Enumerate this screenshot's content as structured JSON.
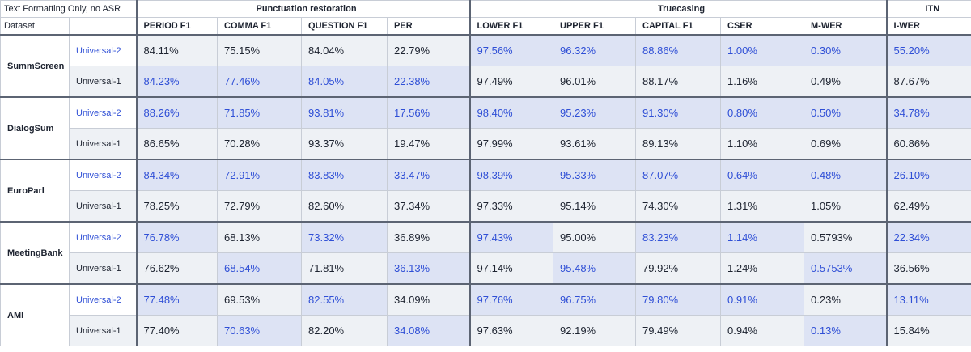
{
  "header": {
    "title": "Text Formatting Only, no ASR",
    "groups": [
      "Punctuation restoration",
      "Truecasing",
      "ITN"
    ],
    "dataset_label": "Dataset",
    "columns": [
      "PERIOD F1",
      "COMMA F1",
      "QUESTION F1",
      "PER",
      "LOWER F1",
      "UPPER F1",
      "CAPITAL F1",
      "CSER",
      "M-WER",
      "I-WER"
    ]
  },
  "datasets": [
    {
      "name": "SummScreen",
      "rows": [
        {
          "model": "Universal-2",
          "cells": [
            "84.11%",
            "75.15%",
            "84.04%",
            "22.79%",
            "97.56%",
            "96.32%",
            "88.86%",
            "1.00%",
            "0.30%",
            "55.20%"
          ],
          "highlight": [
            false,
            false,
            false,
            false,
            true,
            true,
            true,
            true,
            true,
            true
          ]
        },
        {
          "model": "Universal-1",
          "cells": [
            "84.23%",
            "77.46%",
            "84.05%",
            "22.38%",
            "97.49%",
            "96.01%",
            "88.17%",
            "1.16%",
            "0.49%",
            "87.67%"
          ],
          "highlight": [
            true,
            true,
            true,
            true,
            false,
            false,
            false,
            false,
            false,
            false
          ]
        }
      ]
    },
    {
      "name": "DialogSum",
      "rows": [
        {
          "model": "Universal-2",
          "cells": [
            "88.26%",
            "71.85%",
            "93.81%",
            "17.56%",
            "98.40%",
            "95.23%",
            "91.30%",
            "0.80%",
            "0.50%",
            "34.78%"
          ],
          "highlight": [
            true,
            true,
            true,
            true,
            true,
            true,
            true,
            true,
            true,
            true
          ]
        },
        {
          "model": "Universal-1",
          "cells": [
            "86.65%",
            "70.28%",
            "93.37%",
            "19.47%",
            "97.99%",
            "93.61%",
            "89.13%",
            "1.10%",
            "0.69%",
            "60.86%"
          ],
          "highlight": [
            false,
            false,
            false,
            false,
            false,
            false,
            false,
            false,
            false,
            false
          ]
        }
      ]
    },
    {
      "name": "EuroParl",
      "rows": [
        {
          "model": "Universal-2",
          "cells": [
            "84.34%",
            "72.91%",
            "83.83%",
            "33.47%",
            "98.39%",
            "95.33%",
            "87.07%",
            "0.64%",
            "0.48%",
            "26.10%"
          ],
          "highlight": [
            true,
            true,
            true,
            true,
            true,
            true,
            true,
            true,
            true,
            true
          ]
        },
        {
          "model": "Universal-1",
          "cells": [
            "78.25%",
            "72.79%",
            "82.60%",
            "37.34%",
            "97.33%",
            "95.14%",
            "74.30%",
            "1.31%",
            "1.05%",
            "62.49%"
          ],
          "highlight": [
            false,
            false,
            false,
            false,
            false,
            false,
            false,
            false,
            false,
            false
          ]
        }
      ]
    },
    {
      "name": "MeetingBank",
      "rows": [
        {
          "model": "Universal-2",
          "cells": [
            "76.78%",
            "68.13%",
            "73.32%",
            "36.89%",
            "97.43%",
            "95.00%",
            "83.23%",
            "1.14%",
            "0.5793%",
            "22.34%"
          ],
          "highlight": [
            true,
            false,
            true,
            false,
            true,
            false,
            true,
            true,
            false,
            true
          ]
        },
        {
          "model": "Universal-1",
          "cells": [
            "76.62%",
            "68.54%",
            "71.81%",
            "36.13%",
            "97.14%",
            "95.48%",
            "79.92%",
            "1.24%",
            "0.5753%",
            "36.56%"
          ],
          "highlight": [
            false,
            true,
            false,
            true,
            false,
            true,
            false,
            false,
            true,
            false
          ]
        }
      ]
    },
    {
      "name": "AMI",
      "rows": [
        {
          "model": "Universal-2",
          "cells": [
            "77.48%",
            "69.53%",
            "82.55%",
            "34.09%",
            "97.76%",
            "96.75%",
            "79.80%",
            "0.91%",
            "0.23%",
            "13.11%"
          ],
          "highlight": [
            true,
            false,
            true,
            false,
            true,
            true,
            true,
            true,
            false,
            true
          ]
        },
        {
          "model": "Universal-1",
          "cells": [
            "77.40%",
            "70.63%",
            "82.20%",
            "34.08%",
            "97.63%",
            "92.19%",
            "79.49%",
            "0.94%",
            "0.13%",
            "15.84%"
          ],
          "highlight": [
            false,
            true,
            false,
            true,
            false,
            false,
            false,
            false,
            true,
            false
          ]
        }
      ]
    }
  ]
}
